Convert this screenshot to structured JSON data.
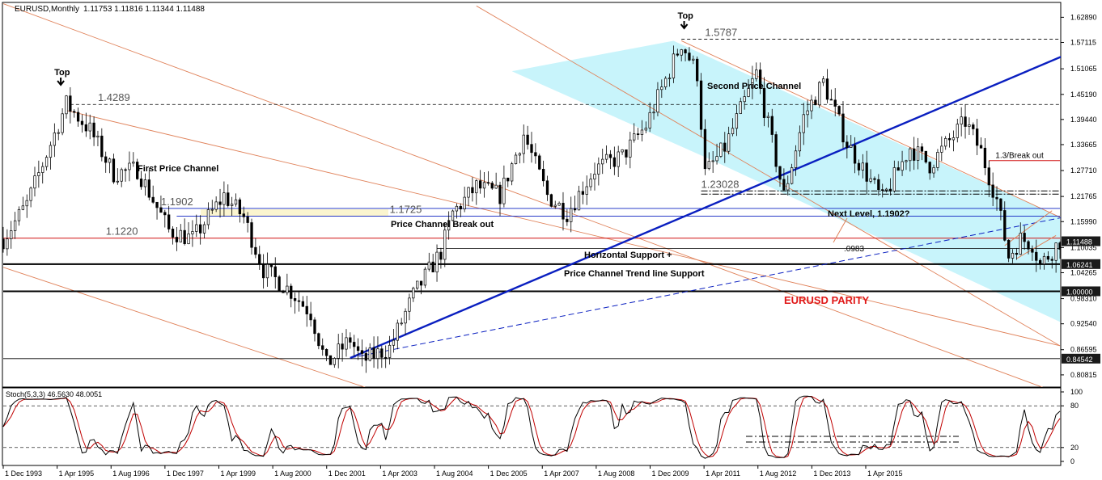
{
  "colors": {
    "accent_blue": "#0a1fc0",
    "channel_fill": "#c8f4fb",
    "channel_line": "#e0825a",
    "support_red": "#d01010",
    "stoch_main": "#000000",
    "stoch_signal": "#c00000",
    "price_box_bg": "#1a1a1a",
    "parity_red": "#e01818"
  },
  "chart_data": [
    {
      "type": "candlestick",
      "title": "EURUSD,Monthly",
      "ohlc_readout": "1.11753 1.11816 1.11344 1.11488",
      "y_tick_labels": [
        "1.62890",
        "1.57115",
        "1.51065",
        "1.45190",
        "1.39440",
        "1.33665",
        "1.27710",
        "1.21765",
        "1.15990",
        "1.10035",
        "1.04265",
        "0.98310",
        "0.92540",
        "0.86595",
        "0.80815"
      ],
      "y_range": [
        0.795,
        1.65
      ],
      "x_tick_labels": [
        "1 Dec 1993",
        "1 Apr 1995",
        "1 Aug 1996",
        "1 Dec 1997",
        "1 Apr 1999",
        "1 Aug 2000",
        "1 Dec 2001",
        "1 Apr 2003",
        "1 Aug 2004",
        "1 Dec 2005",
        "1 Apr 2007",
        "1 Aug 2008",
        "1 Dec 2009",
        "1 Apr 2011",
        "1 Aug 2012",
        "1 Dec 2013",
        "1 Apr 2015"
      ],
      "x_range": [
        "1993-12",
        "2016-04"
      ],
      "current_price_label": "1.11488",
      "price_boxes": [
        "1.06241",
        "1.00000",
        "0.84542"
      ],
      "price_path": [
        [
          "1993-12",
          1.12
        ],
        [
          "1994-06",
          1.2
        ],
        [
          "1995-04",
          1.43
        ],
        [
          "1995-10",
          1.37
        ],
        [
          "1996-04",
          1.27
        ],
        [
          "1996-10",
          1.28
        ],
        [
          "1997-06",
          1.14
        ],
        [
          "1997-12",
          1.12
        ],
        [
          "1998-08",
          1.22
        ],
        [
          "1999-01",
          1.17
        ],
        [
          "1999-06",
          1.05
        ],
        [
          "2000-01",
          1.0
        ],
        [
          "2000-06",
          0.95
        ],
        [
          "2000-10",
          0.83
        ],
        [
          "2001-04",
          0.89
        ],
        [
          "2001-07",
          0.84
        ],
        [
          "2002-02",
          0.87
        ],
        [
          "2002-08",
          0.99
        ],
        [
          "2003-03",
          1.09
        ],
        [
          "2003-06",
          1.18
        ],
        [
          "2003-12",
          1.24
        ],
        [
          "2004-06",
          1.22
        ],
        [
          "2004-12",
          1.36
        ],
        [
          "2005-06",
          1.22
        ],
        [
          "2005-11",
          1.18
        ],
        [
          "2006-06",
          1.28
        ],
        [
          "2007-01",
          1.31
        ],
        [
          "2007-07",
          1.38
        ],
        [
          "2008-04",
          1.57
        ],
        [
          "2008-08",
          1.5
        ],
        [
          "2008-10",
          1.27
        ],
        [
          "2009-03",
          1.33
        ],
        [
          "2009-11",
          1.5
        ],
        [
          "2010-06",
          1.22
        ],
        [
          "2010-11",
          1.4
        ],
        [
          "2011-04",
          1.48
        ],
        [
          "2011-10",
          1.34
        ],
        [
          "2012-07",
          1.21
        ],
        [
          "2013-02",
          1.33
        ],
        [
          "2013-07",
          1.29
        ],
        [
          "2014-04",
          1.39
        ],
        [
          "2014-08",
          1.32
        ],
        [
          "2014-12",
          1.21
        ],
        [
          "2015-03",
          1.08
        ],
        [
          "2015-06",
          1.12
        ],
        [
          "2015-09",
          1.11
        ],
        [
          "2015-11",
          1.06
        ],
        [
          "2016-04",
          1.115
        ]
      ],
      "horizontal_levels": [
        {
          "label": "1.5787",
          "value": 1.5787,
          "style": "dashed"
        },
        {
          "label": "1.4289",
          "value": 1.4289,
          "style": "dashed"
        },
        {
          "label": "1.3/Break out",
          "value": 1.3,
          "style": "red"
        },
        {
          "label": "1.23028",
          "value": 1.2303,
          "style": "dashdot"
        },
        {
          "label": "1.1902",
          "value": 1.1902,
          "style": "blue"
        },
        {
          "label": "1.1725",
          "value": 1.1725,
          "style": "blue"
        },
        {
          "label": "1.1220",
          "value": 1.122,
          "style": "red"
        },
        {
          "label": "",
          "value": 1.0983,
          "style": "thin"
        },
        {
          "label": "",
          "value": 1.0624,
          "style": "bold"
        },
        {
          "label": "",
          "value": 1.0,
          "style": "bold"
        },
        {
          "label": "",
          "value": 0.8454,
          "style": "thin"
        }
      ],
      "annotations": [
        {
          "text": "Top",
          "kind": "marker"
        },
        {
          "text": "Top",
          "kind": "marker"
        },
        {
          "text": "First Price Channel",
          "kind": "label"
        },
        {
          "text": "Second Price Channel",
          "kind": "label"
        },
        {
          "text": "Price Channel Break out",
          "kind": "label"
        },
        {
          "text": "Next Level, 1.1902?",
          "kind": "label"
        },
        {
          "text": "Horizontal Support +",
          "kind": "label"
        },
        {
          "text": "Price Channel Trend line Support",
          "kind": "label"
        },
        {
          "text": "EURUSD PARITY",
          "kind": "label"
        },
        {
          "text": ".0983",
          "kind": "label"
        }
      ]
    },
    {
      "type": "line",
      "title": "Stoch(5,3,3) 46.5630 48.0051",
      "y_tick_labels": [
        "100",
        "80",
        "20",
        "0"
      ],
      "y_range": [
        0,
        100
      ],
      "levels": [
        80,
        20
      ]
    }
  ]
}
